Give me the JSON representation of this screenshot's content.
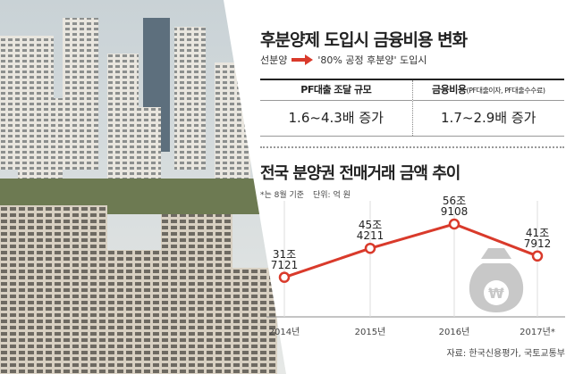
{
  "header": {
    "title": "후분양제 도입시 금융비용 변화",
    "from": "선분양",
    "to": "'80% 공정 후분양' 도입시"
  },
  "table": [
    {
      "header": "PF대출 조달 규모",
      "value": "1.6~4.3배 증가"
    },
    {
      "header": "금융비용",
      "detail": "(PF대출이자, PF대출수수료)",
      "value": "1.7~2.9배 증가"
    }
  ],
  "chart_data": {
    "type": "line",
    "title": "전국 분양권 전매거래 금액 추이",
    "note": "*는 8월 기준",
    "unit": "단위: 억 원",
    "categories": [
      "2014년",
      "2015년",
      "2016년",
      "2017년*"
    ],
    "values": [
      317121,
      454211,
      569108,
      417912
    ],
    "value_labels": [
      "31조\n7121",
      "45조\n4211",
      "56조\n9108",
      "41조\n7912"
    ],
    "color": "#d93a2b",
    "ylim": [
      130000,
      700000
    ]
  },
  "source": "자료: 한국신용평가, 국토교통부"
}
